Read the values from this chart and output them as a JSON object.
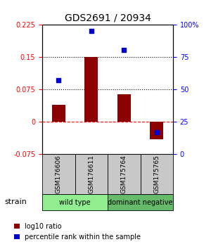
{
  "title": "GDS2691 / 20934",
  "samples": [
    "GSM176606",
    "GSM176611",
    "GSM175764",
    "GSM175765"
  ],
  "log10_ratio": [
    0.04,
    0.15,
    0.065,
    -0.04
  ],
  "percentile_rank": [
    0.575,
    0.955,
    0.805,
    0.17
  ],
  "ylim_left": [
    -0.075,
    0.225
  ],
  "ylim_right": [
    0.0,
    1.0
  ],
  "yticks_left": [
    -0.075,
    0,
    0.075,
    0.15,
    0.225
  ],
  "ytick_labels_left": [
    "-0.075",
    "0",
    "0.075",
    "0.15",
    "0.225"
  ],
  "yticks_right": [
    0.0,
    0.25,
    0.5,
    0.75,
    1.0
  ],
  "ytick_labels_right": [
    "0",
    "25",
    "50",
    "75",
    "100%"
  ],
  "hlines": [
    0.075,
    0.15
  ],
  "bar_color": "#8B0000",
  "scatter_color": "#0000CD",
  "bar_width": 0.4,
  "legend_red_label": "log10 ratio",
  "legend_blue_label": "percentile rank within the sample",
  "strain_label": "strain",
  "group_color_1": "#90EE90",
  "group_color_2": "#66BB6A",
  "sample_box_color": "#C8C8C8"
}
